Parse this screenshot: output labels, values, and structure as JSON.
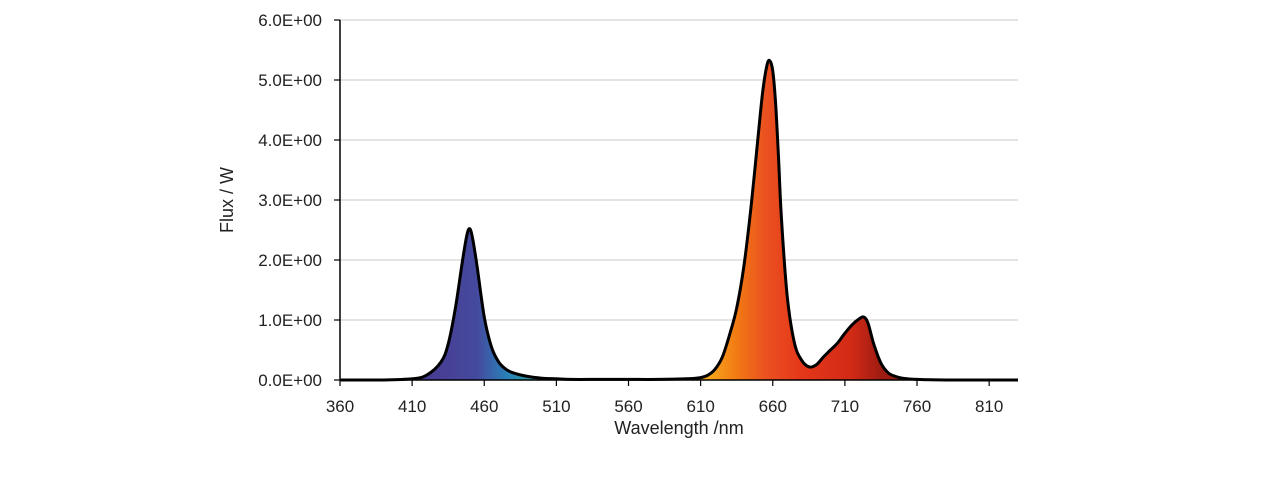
{
  "chart_data": {
    "type": "area",
    "xlabel": "Wavelength /nm",
    "ylabel": "Flux / W",
    "xlim": [
      360,
      830
    ],
    "ylim": [
      0,
      6
    ],
    "x_ticks": [
      360,
      410,
      460,
      510,
      560,
      610,
      660,
      710,
      760,
      810
    ],
    "x_tick_labels": [
      "360",
      "410",
      "460",
      "510",
      "560",
      "610",
      "660",
      "710",
      "760",
      "810"
    ],
    "y_ticks": [
      0,
      1,
      2,
      3,
      4,
      5,
      6
    ],
    "y_tick_labels": [
      "0.0E+00",
      "1.0E+00",
      "2.0E+00",
      "3.0E+00",
      "4.0E+00",
      "5.0E+00",
      "6.0E+00"
    ],
    "grid": "horizontal",
    "legend": "none",
    "fill": "wavelength spectrum colors",
    "series": [
      {
        "x": [
          360,
          390,
          410,
          420,
          430,
          435,
          440,
          445,
          448,
          450,
          452,
          455,
          460,
          465,
          470,
          475,
          480,
          490,
          500,
          510,
          520,
          540,
          560,
          580,
          600,
          610,
          615,
          620,
          625,
          630,
          635,
          640,
          645,
          650,
          653,
          656,
          658,
          660,
          662,
          664,
          666,
          670,
          675,
          680,
          685,
          690,
          695,
          700,
          705,
          710,
          715,
          720,
          723,
          726,
          730,
          735,
          740,
          745,
          750,
          760,
          780,
          830
        ],
        "y": [
          0.0,
          0.0,
          0.02,
          0.08,
          0.3,
          0.6,
          1.2,
          2.0,
          2.42,
          2.52,
          2.35,
          1.9,
          1.05,
          0.55,
          0.3,
          0.18,
          0.12,
          0.06,
          0.03,
          0.02,
          0.01,
          0.01,
          0.01,
          0.01,
          0.02,
          0.04,
          0.08,
          0.18,
          0.38,
          0.75,
          1.2,
          1.9,
          2.9,
          4.1,
          4.8,
          5.25,
          5.32,
          5.15,
          4.6,
          3.7,
          2.7,
          1.4,
          0.62,
          0.33,
          0.22,
          0.25,
          0.38,
          0.5,
          0.62,
          0.78,
          0.92,
          1.02,
          1.05,
          0.95,
          0.6,
          0.28,
          0.12,
          0.06,
          0.03,
          0.01,
          0.0,
          0.0
        ]
      }
    ]
  }
}
